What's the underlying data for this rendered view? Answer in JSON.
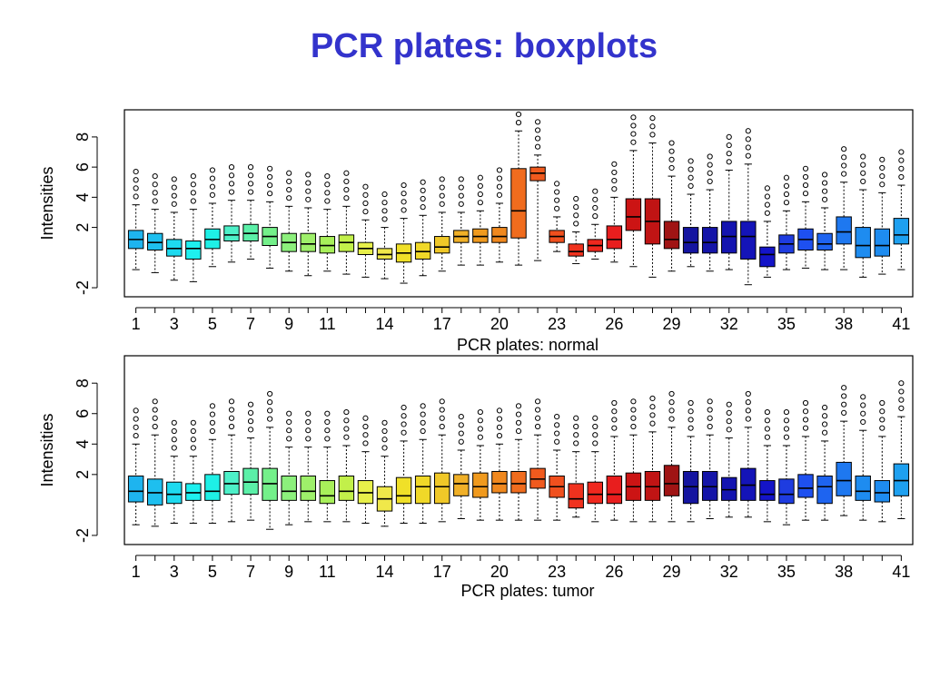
{
  "slide": {
    "title": "PCR plates: boxplots"
  },
  "chart_data": [
    {
      "type": "boxplot",
      "xlabel": "PCR plates: normal",
      "ylabel": "Intensities",
      "ylim": [
        -2.6,
        9.8
      ],
      "yticks": [
        -2,
        2,
        4,
        6,
        8
      ],
      "xticks": [
        1,
        3,
        5,
        7,
        9,
        11,
        14,
        17,
        20,
        23,
        26,
        29,
        32,
        35,
        38,
        41
      ],
      "categories": [
        1,
        2,
        3,
        4,
        5,
        6,
        7,
        8,
        9,
        10,
        11,
        12,
        13,
        14,
        15,
        16,
        17,
        18,
        19,
        20,
        21,
        22,
        23,
        24,
        25,
        26,
        27,
        28,
        29,
        30,
        31,
        32,
        33,
        34,
        35,
        36,
        37,
        38,
        39,
        40,
        41
      ],
      "colors": [
        "#1eb4ef",
        "#1ebfef",
        "#1edaef",
        "#1ef0ef",
        "#1ef0e6",
        "#4df0c8",
        "#5bf0a8",
        "#74f08a",
        "#8cf07c",
        "#9ef06a",
        "#a8f05a",
        "#c2f04a",
        "#e8f04a",
        "#f0e84a",
        "#f0e028",
        "#f0d828",
        "#f0c828",
        "#f0b028",
        "#f09a1e",
        "#f0881e",
        "#f06c1e",
        "#f05a1e",
        "#f0501e",
        "#f0321e",
        "#f0281e",
        "#e81e1e",
        "#cc1414",
        "#c01414",
        "#a01414",
        "#1414a0",
        "#1414a8",
        "#1414b0",
        "#1414b8",
        "#1414c8",
        "#1e3ce0",
        "#1e50f0",
        "#1e64f0",
        "#1e78f0",
        "#1e8cf0",
        "#1e8cf0",
        "#1ea0f0"
      ],
      "series": [
        {
          "min": -0.8,
          "q1": 0.6,
          "median": 1.2,
          "q3": 1.8,
          "max": 3.5
        },
        {
          "min": -1.0,
          "q1": 0.5,
          "median": 1.0,
          "q3": 1.6,
          "max": 3.2
        },
        {
          "min": -1.5,
          "q1": 0.1,
          "median": 0.6,
          "q3": 1.2,
          "max": 3.0
        },
        {
          "min": -1.6,
          "q1": -0.1,
          "median": 0.6,
          "q3": 1.1,
          "max": 3.2
        },
        {
          "min": -0.6,
          "q1": 0.6,
          "median": 1.2,
          "q3": 1.9,
          "max": 3.6
        },
        {
          "min": -0.3,
          "q1": 1.1,
          "median": 1.5,
          "q3": 2.1,
          "max": 3.8
        },
        {
          "min": -0.1,
          "q1": 1.1,
          "median": 1.6,
          "q3": 2.2,
          "max": 3.8
        },
        {
          "min": -0.7,
          "q1": 0.8,
          "median": 1.4,
          "q3": 2.0,
          "max": 3.7
        },
        {
          "min": -0.9,
          "q1": 0.4,
          "median": 1.0,
          "q3": 1.6,
          "max": 3.4
        },
        {
          "min": -1.2,
          "q1": 0.4,
          "median": 0.9,
          "q3": 1.6,
          "max": 3.3
        },
        {
          "min": -0.9,
          "q1": 0.3,
          "median": 0.8,
          "q3": 1.4,
          "max": 3.2
        },
        {
          "min": -1.1,
          "q1": 0.4,
          "median": 1.0,
          "q3": 1.5,
          "max": 3.4
        },
        {
          "min": -1.3,
          "q1": 0.2,
          "median": 0.6,
          "q3": 1.0,
          "max": 2.5
        },
        {
          "min": -1.4,
          "q1": -0.1,
          "median": 0.2,
          "q3": 0.6,
          "max": 2.0
        },
        {
          "min": -1.7,
          "q1": -0.3,
          "median": 0.3,
          "q3": 0.9,
          "max": 2.6
        },
        {
          "min": -1.2,
          "q1": -0.1,
          "median": 0.4,
          "q3": 1.0,
          "max": 2.8
        },
        {
          "min": -0.9,
          "q1": 0.3,
          "median": 0.7,
          "q3": 1.4,
          "max": 3.0
        },
        {
          "min": -0.5,
          "q1": 1.0,
          "median": 1.4,
          "q3": 1.8,
          "max": 3.0
        },
        {
          "min": -0.5,
          "q1": 1.0,
          "median": 1.4,
          "q3": 1.9,
          "max": 3.1
        },
        {
          "min": -0.3,
          "q1": 1.0,
          "median": 1.4,
          "q3": 2.0,
          "max": 3.6
        },
        {
          "min": -0.5,
          "q1": 1.3,
          "median": 3.1,
          "q3": 5.9,
          "max": 8.4
        },
        {
          "min": -0.2,
          "q1": 5.1,
          "median": 5.6,
          "q3": 6.0,
          "max": 6.8
        },
        {
          "min": 0.4,
          "q1": 1.0,
          "median": 1.4,
          "q3": 1.8,
          "max": 2.7
        },
        {
          "min": -0.4,
          "q1": 0.1,
          "median": 0.4,
          "q3": 0.9,
          "max": 1.7
        },
        {
          "min": -0.1,
          "q1": 0.4,
          "median": 0.8,
          "q3": 1.2,
          "max": 2.2
        },
        {
          "min": -0.3,
          "q1": 0.6,
          "median": 1.2,
          "q3": 2.1,
          "max": 4.0
        },
        {
          "min": -0.6,
          "q1": 1.8,
          "median": 2.7,
          "q3": 3.9,
          "max": 7.1
        },
        {
          "min": -1.3,
          "q1": 0.9,
          "median": 2.4,
          "q3": 3.9,
          "max": 7.6
        },
        {
          "min": -0.9,
          "q1": 0.6,
          "median": 1.2,
          "q3": 2.4,
          "max": 5.4
        },
        {
          "min": -0.6,
          "q1": 0.3,
          "median": 1.0,
          "q3": 2.0,
          "max": 4.2
        },
        {
          "min": -0.9,
          "q1": 0.3,
          "median": 1.0,
          "q3": 2.0,
          "max": 4.5
        },
        {
          "min": -0.8,
          "q1": 0.3,
          "median": 1.4,
          "q3": 2.4,
          "max": 5.8
        },
        {
          "min": -1.8,
          "q1": -0.1,
          "median": 1.4,
          "q3": 2.4,
          "max": 6.2
        },
        {
          "min": -1.3,
          "q1": -0.6,
          "median": 0.2,
          "q3": 0.7,
          "max": 2.4
        },
        {
          "min": -0.8,
          "q1": 0.3,
          "median": 0.9,
          "q3": 1.5,
          "max": 3.1
        },
        {
          "min": -0.7,
          "q1": 0.5,
          "median": 1.2,
          "q3": 1.9,
          "max": 3.7
        },
        {
          "min": -0.8,
          "q1": 0.5,
          "median": 0.9,
          "q3": 1.6,
          "max": 3.3
        },
        {
          "min": -0.8,
          "q1": 0.9,
          "median": 1.7,
          "q3": 2.7,
          "max": 5.0
        },
        {
          "min": -1.3,
          "q1": 0.0,
          "median": 0.8,
          "q3": 2.0,
          "max": 4.5
        },
        {
          "min": -1.1,
          "q1": 0.1,
          "median": 0.8,
          "q3": 1.9,
          "max": 4.3
        },
        {
          "min": -0.8,
          "q1": 0.9,
          "median": 1.5,
          "q3": 2.6,
          "max": 4.8
        }
      ]
    },
    {
      "type": "boxplot",
      "xlabel": "PCR plates: tumor",
      "ylabel": "Intensities",
      "ylim": [
        -2.6,
        9.8
      ],
      "yticks": [
        -2,
        2,
        4,
        6,
        8
      ],
      "xticks": [
        1,
        3,
        5,
        7,
        9,
        11,
        14,
        17,
        20,
        23,
        26,
        29,
        32,
        35,
        38,
        41
      ],
      "categories": [
        1,
        2,
        3,
        4,
        5,
        6,
        7,
        8,
        9,
        10,
        11,
        12,
        13,
        14,
        15,
        16,
        17,
        18,
        19,
        20,
        21,
        22,
        23,
        24,
        25,
        26,
        27,
        28,
        29,
        30,
        31,
        32,
        33,
        34,
        35,
        36,
        37,
        38,
        39,
        40,
        41
      ],
      "colors": [
        "#1eb4ef",
        "#1ebfef",
        "#1edaef",
        "#1ef0ef",
        "#1ef0e6",
        "#4df0c8",
        "#5bf0a8",
        "#74f08a",
        "#8cf07c",
        "#9ef06a",
        "#a8f05a",
        "#c2f04a",
        "#e8f04a",
        "#f0e84a",
        "#f0e028",
        "#f0d828",
        "#f0c828",
        "#f0b028",
        "#f09a1e",
        "#f0881e",
        "#f06c1e",
        "#f05a1e",
        "#f0501e",
        "#f0321e",
        "#f0281e",
        "#e81e1e",
        "#cc1414",
        "#c01414",
        "#a01414",
        "#1414a0",
        "#1414a8",
        "#1414b0",
        "#1414b8",
        "#1414c8",
        "#1e3ce0",
        "#1e50f0",
        "#1e64f0",
        "#1e78f0",
        "#1e8cf0",
        "#1e8cf0",
        "#1ea0f0"
      ],
      "series": [
        {
          "min": -1.3,
          "q1": 0.2,
          "median": 0.9,
          "q3": 1.9,
          "max": 4.0
        },
        {
          "min": -1.4,
          "q1": 0.0,
          "median": 0.8,
          "q3": 1.7,
          "max": 4.6
        },
        {
          "min": -1.2,
          "q1": 0.1,
          "median": 0.7,
          "q3": 1.5,
          "max": 3.2
        },
        {
          "min": -1.2,
          "q1": 0.3,
          "median": 0.8,
          "q3": 1.4,
          "max": 3.2
        },
        {
          "min": -1.2,
          "q1": 0.3,
          "median": 0.9,
          "q3": 2.0,
          "max": 4.3
        },
        {
          "min": -1.1,
          "q1": 0.7,
          "median": 1.4,
          "q3": 2.2,
          "max": 4.6
        },
        {
          "min": -1.0,
          "q1": 0.7,
          "median": 1.5,
          "q3": 2.4,
          "max": 4.4
        },
        {
          "min": -1.6,
          "q1": 0.3,
          "median": 1.4,
          "q3": 2.4,
          "max": 5.1
        },
        {
          "min": -1.3,
          "q1": 0.3,
          "median": 0.9,
          "q3": 1.9,
          "max": 3.8
        },
        {
          "min": -1.1,
          "q1": 0.3,
          "median": 0.9,
          "q3": 1.9,
          "max": 3.8
        },
        {
          "min": -1.1,
          "q1": 0.1,
          "median": 0.6,
          "q3": 1.6,
          "max": 3.8
        },
        {
          "min": -1.1,
          "q1": 0.3,
          "median": 0.9,
          "q3": 1.9,
          "max": 3.9
        },
        {
          "min": -1.2,
          "q1": 0.1,
          "median": 0.8,
          "q3": 1.6,
          "max": 3.5
        },
        {
          "min": -1.4,
          "q1": -0.4,
          "median": 0.4,
          "q3": 1.2,
          "max": 3.2
        },
        {
          "min": -1.2,
          "q1": 0.1,
          "median": 0.6,
          "q3": 1.8,
          "max": 4.2
        },
        {
          "min": -1.2,
          "q1": 0.1,
          "median": 1.2,
          "q3": 1.9,
          "max": 4.3
        },
        {
          "min": -1.1,
          "q1": 0.1,
          "median": 1.2,
          "q3": 2.1,
          "max": 4.6
        },
        {
          "min": -0.9,
          "q1": 0.6,
          "median": 1.4,
          "q3": 2.0,
          "max": 3.6
        },
        {
          "min": -1.0,
          "q1": 0.5,
          "median": 1.2,
          "q3": 2.1,
          "max": 3.9
        },
        {
          "min": -1.0,
          "q1": 0.8,
          "median": 1.4,
          "q3": 2.2,
          "max": 4.0
        },
        {
          "min": -1.0,
          "q1": 0.8,
          "median": 1.4,
          "q3": 2.2,
          "max": 4.3
        },
        {
          "min": -1.0,
          "q1": 1.1,
          "median": 1.7,
          "q3": 2.4,
          "max": 4.6
        },
        {
          "min": -1.0,
          "q1": 0.5,
          "median": 1.2,
          "q3": 1.9,
          "max": 3.6
        },
        {
          "min": -0.8,
          "q1": -0.2,
          "median": 0.4,
          "q3": 1.4,
          "max": 3.5
        },
        {
          "min": -1.1,
          "q1": 0.1,
          "median": 0.7,
          "q3": 1.5,
          "max": 3.5
        },
        {
          "min": -1.0,
          "q1": 0.1,
          "median": 0.7,
          "q3": 1.9,
          "max": 4.5
        },
        {
          "min": -1.1,
          "q1": 0.3,
          "median": 1.2,
          "q3": 2.1,
          "max": 4.6
        },
        {
          "min": -1.1,
          "q1": 0.3,
          "median": 1.2,
          "q3": 2.2,
          "max": 4.8
        },
        {
          "min": -1.1,
          "q1": 0.6,
          "median": 1.4,
          "q3": 2.6,
          "max": 5.1
        },
        {
          "min": -1.1,
          "q1": 0.1,
          "median": 1.2,
          "q3": 2.2,
          "max": 4.5
        },
        {
          "min": -0.9,
          "q1": 0.3,
          "median": 1.2,
          "q3": 2.2,
          "max": 4.6
        },
        {
          "min": -0.8,
          "q1": 0.3,
          "median": 1.0,
          "q3": 1.8,
          "max": 4.4
        },
        {
          "min": -0.8,
          "q1": 0.3,
          "median": 1.3,
          "q3": 2.4,
          "max": 5.1
        },
        {
          "min": -1.1,
          "q1": 0.3,
          "median": 0.7,
          "q3": 1.6,
          "max": 3.9
        },
        {
          "min": -1.3,
          "q1": 0.1,
          "median": 0.7,
          "q3": 1.7,
          "max": 3.9
        },
        {
          "min": -1.0,
          "q1": 0.5,
          "median": 1.1,
          "q3": 2.0,
          "max": 4.5
        },
        {
          "min": -1.0,
          "q1": 0.1,
          "median": 1.2,
          "q3": 1.9,
          "max": 4.2
        },
        {
          "min": -0.7,
          "q1": 0.6,
          "median": 1.6,
          "q3": 2.8,
          "max": 5.5
        },
        {
          "min": -1.0,
          "q1": 0.3,
          "median": 0.9,
          "q3": 1.9,
          "max": 4.9
        },
        {
          "min": -1.1,
          "q1": 0.2,
          "median": 0.8,
          "q3": 1.6,
          "max": 4.5
        },
        {
          "min": -0.9,
          "q1": 0.6,
          "median": 1.6,
          "q3": 2.7,
          "max": 5.8
        }
      ]
    }
  ]
}
